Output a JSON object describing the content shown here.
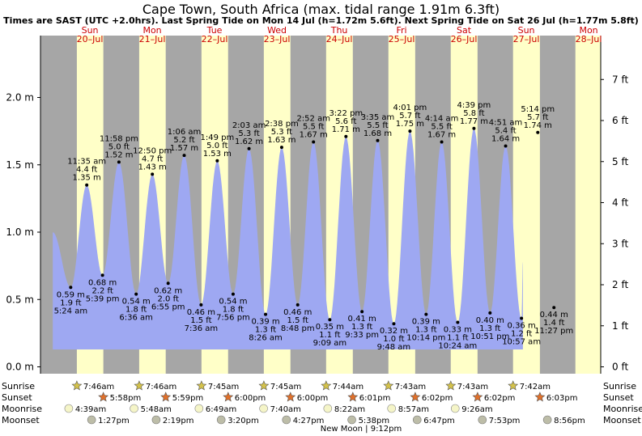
{
  "title": "Cape Town, South Africa (max. tidal range 1.91m 6.3ft)",
  "subtitle": "Times are SAST (UTC +2.0hrs). Last Spring Tide on Mon 14 Jul (h=1.72m 5.6ft). Next Spring Tide on Sat 26 Jul (h=1.77m 5.8ft)",
  "colors": {
    "night": "#a6a6a6",
    "day": "#ffffc8",
    "tide": "#9ea8f2",
    "day_label": "#cc0000"
  },
  "row_labels": [
    "Sunrise",
    "Sunset",
    "Moonrise",
    "Moonset"
  ],
  "moon_phase": "New Moon | 9:12pm",
  "days": [
    {
      "dow": "Sun",
      "date": "20–Jul",
      "sunrise": "7:46am",
      "sunset": "5:58pm",
      "moonrise": "4:39am",
      "moonset": "1:27pm"
    },
    {
      "dow": "Mon",
      "date": "21–Jul",
      "sunrise": "7:46am",
      "sunset": "5:59pm",
      "moonrise": "5:48am",
      "moonset": "2:19pm"
    },
    {
      "dow": "Tue",
      "date": "22–Jul",
      "sunrise": "7:45am",
      "sunset": "6:00pm",
      "moonrise": "6:49am",
      "moonset": "3:20pm"
    },
    {
      "dow": "Wed",
      "date": "23–Jul",
      "sunrise": "7:45am",
      "sunset": "6:00pm",
      "moonrise": "7:40am",
      "moonset": "4:27pm"
    },
    {
      "dow": "Thu",
      "date": "24–Jul",
      "sunrise": "7:44am",
      "sunset": "6:01pm",
      "moonrise": "8:22am",
      "moonset": "5:38pm"
    },
    {
      "dow": "Fri",
      "date": "25–Jul",
      "sunrise": "7:43am",
      "sunset": "6:02pm",
      "moonrise": "8:57am",
      "moonset": "6:47pm"
    },
    {
      "dow": "Sat",
      "date": "26–Jul",
      "sunrise": "7:43am",
      "sunset": "6:02pm",
      "moonrise": "9:26am",
      "moonset": "7:53pm"
    },
    {
      "dow": "Sun",
      "date": "27–Jul",
      "sunrise": "7:42am",
      "sunset": "6:03pm",
      "moonrise": "",
      "moonset": "8:56pm"
    },
    {
      "dow": "Mon",
      "date": "28–Jul",
      "sunrise": "",
      "sunset": "",
      "moonrise": "",
      "moonset": ""
    }
  ],
  "chart_data": {
    "type": "area",
    "title": "Cape Town, South Africa (max. tidal range 1.91m 6.3ft)",
    "x_unit": "hours since 20-Jul 00:00",
    "y_left_ticks": [
      "0.0 m",
      "0.5 m",
      "1.0 m",
      "1.5 m",
      "2.0 m"
    ],
    "y_right_ticks": [
      "0 ft",
      "1 ft",
      "2 ft",
      "3 ft",
      "4 ft",
      "5 ft",
      "6 ft",
      "7 ft"
    ],
    "ylim_m": [
      -0.05,
      2.2
    ],
    "series_start": {
      "t": -1.5,
      "h": 1.0
    },
    "series_end": {
      "t": 179.5,
      "h": 0.78
    },
    "tides": [
      {
        "t": 5.4,
        "h": 0.59,
        "m": "0.59 m",
        "ft": "1.9 ft",
        "time": "5:24 am",
        "type": "low"
      },
      {
        "t": 11.58,
        "h": 1.35,
        "m": "1.35 m",
        "ft": "4.4 ft",
        "time": "11:35 am",
        "type": "high"
      },
      {
        "t": 17.65,
        "h": 0.68,
        "m": "0.68 m",
        "ft": "2.2 ft",
        "time": "5:39 pm",
        "type": "low"
      },
      {
        "t": 23.97,
        "h": 1.52,
        "m": "1.52 m",
        "ft": "5.0 ft",
        "time": "11:58 pm",
        "type": "high"
      },
      {
        "t": 30.6,
        "h": 0.54,
        "m": "0.54 m",
        "ft": "1.8 ft",
        "time": "6:36 am",
        "type": "low"
      },
      {
        "t": 36.83,
        "h": 1.43,
        "m": "1.43 m",
        "ft": "4.7 ft",
        "time": "12:50 pm",
        "type": "high"
      },
      {
        "t": 42.92,
        "h": 0.62,
        "m": "0.62 m",
        "ft": "2.0 ft",
        "time": "6:55 pm",
        "type": "low"
      },
      {
        "t": 49.1,
        "h": 1.57,
        "m": "1.57 m",
        "ft": "5.2 ft",
        "time": "1:06 am",
        "type": "high"
      },
      {
        "t": 55.6,
        "h": 0.46,
        "m": "0.46 m",
        "ft": "1.5 ft",
        "time": "7:36 am",
        "type": "low"
      },
      {
        "t": 61.82,
        "h": 1.53,
        "m": "1.53 m",
        "ft": "5.0 ft",
        "time": "1:49 pm",
        "type": "high"
      },
      {
        "t": 67.93,
        "h": 0.54,
        "m": "0.54 m",
        "ft": "1.8 ft",
        "time": "7:56 pm",
        "type": "low"
      },
      {
        "t": 74.05,
        "h": 1.62,
        "m": "1.62 m",
        "ft": "5.3 ft",
        "time": "2:03 am",
        "type": "high"
      },
      {
        "t": 80.43,
        "h": 0.39,
        "m": "0.39 m",
        "ft": "1.3 ft",
        "time": "8:26 am",
        "type": "low"
      },
      {
        "t": 86.63,
        "h": 1.63,
        "m": "1.63 m",
        "ft": "5.3 ft",
        "time": "2:38 pm",
        "type": "high"
      },
      {
        "t": 92.8,
        "h": 0.46,
        "m": "0.46 m",
        "ft": "1.5 ft",
        "time": "8:48 pm",
        "type": "low"
      },
      {
        "t": 98.87,
        "h": 1.67,
        "m": "1.67 m",
        "ft": "5.5 ft",
        "time": "2:52 am",
        "type": "high"
      },
      {
        "t": 105.15,
        "h": 0.35,
        "m": "0.35 m",
        "ft": "1.1 ft",
        "time": "9:09 am",
        "type": "low"
      },
      {
        "t": 111.37,
        "h": 1.71,
        "m": "1.71 m",
        "ft": "5.6 ft",
        "time": "3:22 pm",
        "type": "high"
      },
      {
        "t": 117.55,
        "h": 0.41,
        "m": "0.41 m",
        "ft": "1.3 ft",
        "time": "9:33 pm",
        "type": "low"
      },
      {
        "t": 123.58,
        "h": 1.68,
        "m": "1.68 m",
        "ft": "5.5 ft",
        "time": "3:35 am",
        "type": "high"
      },
      {
        "t": 129.8,
        "h": 0.32,
        "m": "0.32 m",
        "ft": "1.0 ft",
        "time": "9:48 am",
        "type": "low"
      },
      {
        "t": 136.02,
        "h": 1.75,
        "m": "1.75 m",
        "ft": "5.7 ft",
        "time": "4:01 pm",
        "type": "high"
      },
      {
        "t": 142.23,
        "h": 0.39,
        "m": "0.39 m",
        "ft": "1.3 ft",
        "time": "10:14 pm",
        "type": "low"
      },
      {
        "t": 148.23,
        "h": 1.67,
        "m": "1.67 m",
        "ft": "5.5 ft",
        "time": "4:14 am",
        "type": "high"
      },
      {
        "t": 154.4,
        "h": 0.33,
        "m": "0.33 m",
        "ft": "1.1 ft",
        "time": "10:24 am",
        "type": "low"
      },
      {
        "t": 160.65,
        "h": 1.77,
        "m": "1.77 m",
        "ft": "5.8 ft",
        "time": "4:39 pm",
        "type": "high"
      },
      {
        "t": 166.85,
        "h": 0.4,
        "m": "0.40 m",
        "ft": "1.3 ft",
        "time": "10:51 pm",
        "type": "low"
      },
      {
        "t": 172.85,
        "h": 1.64,
        "m": "1.64 m",
        "ft": "5.4 ft",
        "time": "4:51 am",
        "type": "high"
      },
      {
        "t": 178.95,
        "h": 0.36,
        "m": "0.36 m",
        "ft": "1.2 ft",
        "time": "10:57 am",
        "type": "low"
      },
      {
        "t": 185.23,
        "h": 1.74,
        "m": "1.74 m",
        "ft": "5.7 ft",
        "time": "5:14 pm",
        "type": "high"
      },
      {
        "t": 191.45,
        "h": 0.44,
        "m": "0.44 m",
        "ft": "1.4 ft",
        "time": "11:27 pm",
        "type": "low"
      }
    ]
  }
}
